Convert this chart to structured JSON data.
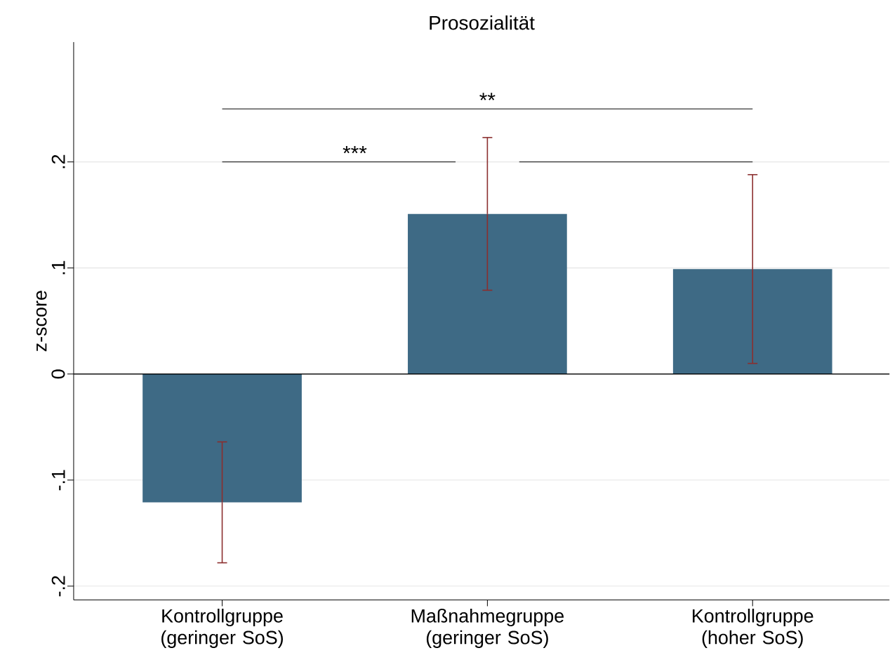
{
  "chart_data": {
    "type": "bar",
    "title": "Prosozialität",
    "ylabel": "z-score",
    "categories": [
      "Kontrollgruppe (geringer SoS)",
      "Maßnahmegruppe (geringer SoS)",
      "Kontrollgruppe (hoher SoS)"
    ],
    "values": [
      -0.121,
      0.151,
      0.099
    ],
    "errors": [
      0.057,
      0.072,
      0.089
    ],
    "color": "#3e6a85",
    "ylim": [
      -0.213,
      0.313
    ],
    "yticks": [
      {
        "value": -0.2,
        "label": "-.2"
      },
      {
        "value": -0.1,
        "label": "-.1"
      },
      0,
      {
        "value": 0.1,
        "label": ".1"
      },
      {
        "value": 0.2,
        "label": ".2"
      }
    ],
    "grid": "y",
    "ref_lines": [
      {
        "axis": "y",
        "value": 0,
        "color": "#000000"
      }
    ],
    "annotations": [
      "***",
      "**"
    ]
  }
}
